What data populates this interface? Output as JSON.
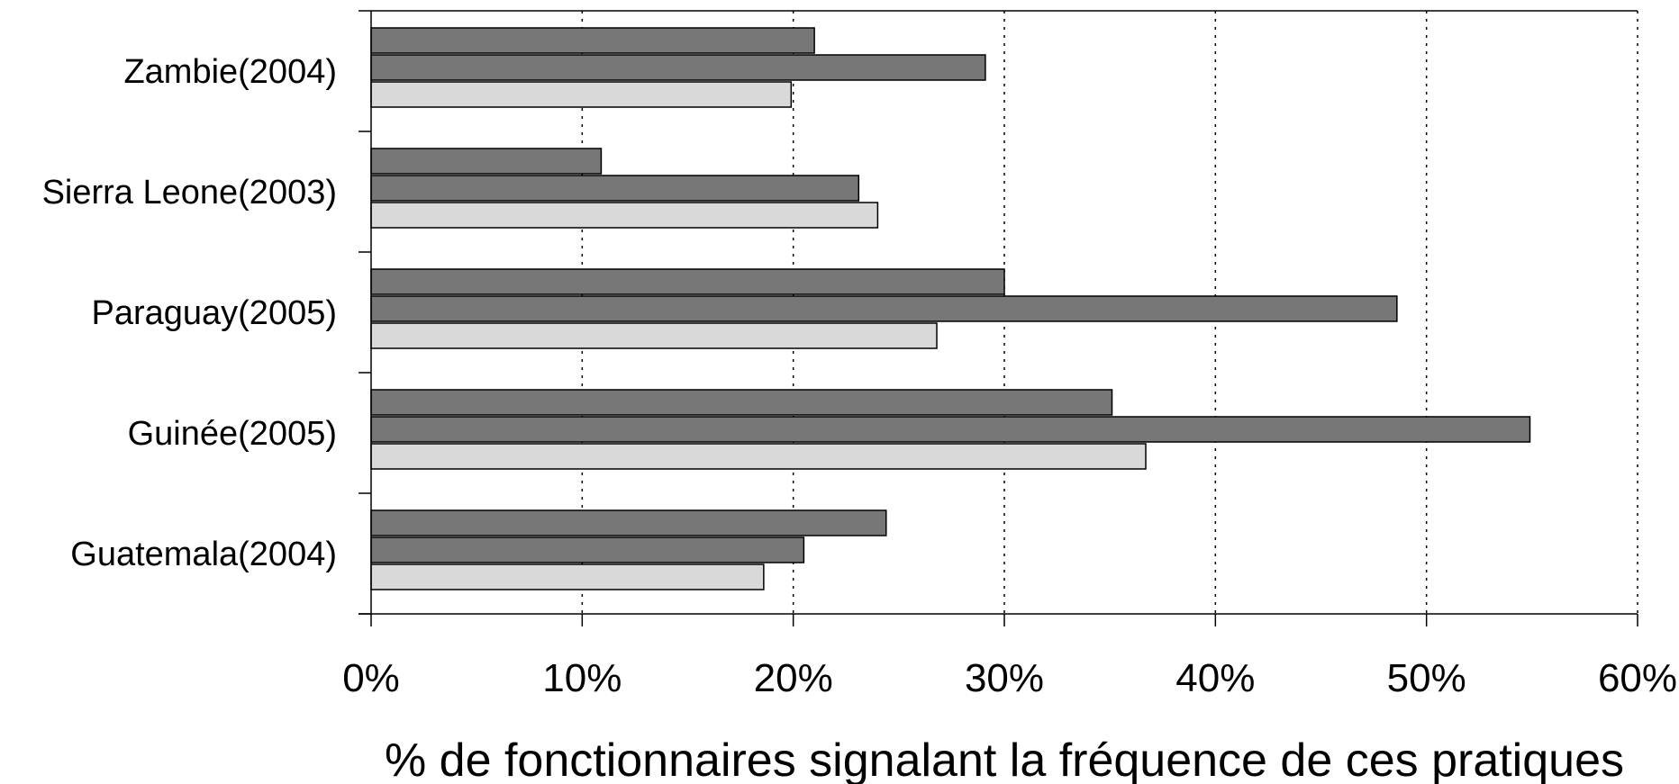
{
  "chart_data": {
    "type": "bar",
    "orientation": "horizontal",
    "title": "",
    "xlabel": "% de fonctionnaires signalant la fréquence de ces pratiques",
    "ylabel": "",
    "xlim": [
      0,
      60
    ],
    "x_ticks": [
      0,
      10,
      20,
      30,
      40,
      50,
      60
    ],
    "x_tick_labels": [
      "0%",
      "10%",
      "20%",
      "30%",
      "40%",
      "50%",
      "60%"
    ],
    "grid": "vertical dotted",
    "legend": "none",
    "categories": [
      "Zambie(2004)",
      "Sierra Leone(2003)",
      "Paraguay(2005)",
      "Guinée(2005)",
      "Guatemala(2004)"
    ],
    "series": [
      {
        "color": "#777777",
        "values": [
          21.0,
          10.9,
          30.0,
          35.1,
          24.4
        ]
      },
      {
        "color": "#777777",
        "values": [
          29.1,
          23.1,
          48.6,
          54.9,
          20.5
        ]
      },
      {
        "color": "#d9d9d9",
        "values": [
          19.9,
          24.0,
          26.8,
          36.7,
          18.6
        ]
      }
    ]
  }
}
